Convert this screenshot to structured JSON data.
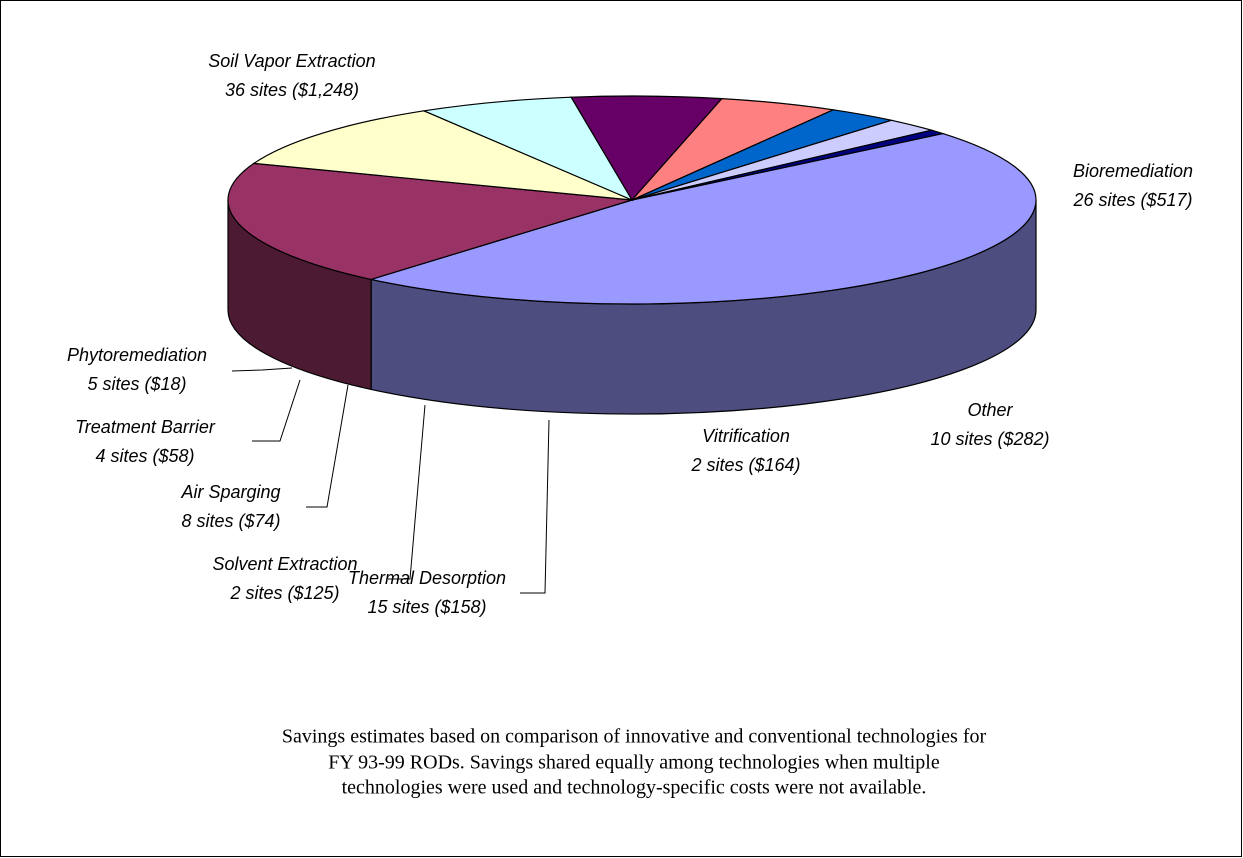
{
  "chart_data": {
    "type": "pie3d",
    "categories": [
      "Soil Vapor Extraction",
      "Bioremediation",
      "Other",
      "Vitrification",
      "Thermal Desorption",
      "Solvent Extraction",
      "Air Sparging",
      "Treatment Barrier",
      "Phytoremediation"
    ],
    "values": [
      1248,
      517,
      282,
      164,
      158,
      125,
      74,
      58,
      18
    ],
    "value_labels": [
      "36 sites ($1,248)",
      "26 sites ($517)",
      "10 sites ($282)",
      "2 sites ($164)",
      "15 sites ($158)",
      "2 sites ($125)",
      "8 sites ($74)",
      "4 sites ($58)",
      "5 sites ($18)"
    ],
    "colors": [
      "#9999ff",
      "#993366",
      "#ffffcc",
      "#ccffff",
      "#660066",
      "#ff8080",
      "#0066cc",
      "#ccccff",
      "#000080"
    ],
    "footnote": [
      "Savings estimates based on comparison of innovative and conventional technologies for",
      "FY 93-99 RODs.  Savings shared equally among technologies when multiple",
      "technologies were used and technology-specific costs were not available."
    ]
  }
}
